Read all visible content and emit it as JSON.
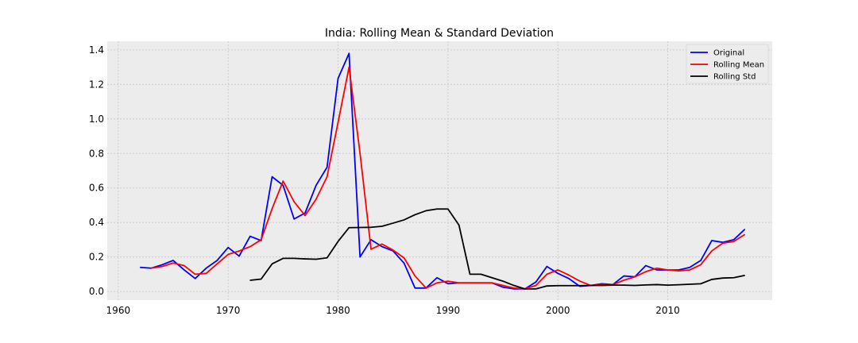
{
  "chart_data": {
    "type": "line",
    "title": "India: Rolling Mean & Standard Deviation",
    "xlabel": "",
    "ylabel": "",
    "xlim": [
      1959,
      2019.5
    ],
    "ylim": [
      -0.05,
      1.45
    ],
    "x_ticks": [
      1960,
      1970,
      1980,
      1990,
      2000,
      2010
    ],
    "y_ticks": [
      0.0,
      0.2,
      0.4,
      0.6,
      0.8,
      1.0,
      1.2,
      1.4
    ],
    "grid": true,
    "legend_position": "top-right",
    "series": [
      {
        "name": "Original",
        "color": "#0000ff",
        "x": [
          1962,
          1963,
          1964,
          1965,
          1966,
          1967,
          1968,
          1969,
          1970,
          1971,
          1972,
          1973,
          1974,
          1975,
          1976,
          1977,
          1978,
          1979,
          1980,
          1981,
          1982,
          1983,
          1984,
          1985,
          1986,
          1987,
          1988,
          1989,
          1990,
          1991,
          1992,
          1993,
          1994,
          1995,
          1996,
          1997,
          1998,
          1999,
          2000,
          2001,
          2002,
          2003,
          2004,
          2005,
          2006,
          2007,
          2008,
          2009,
          2010,
          2011,
          2012,
          2013,
          2014,
          2015,
          2016,
          2017
        ],
        "values": [
          0.14,
          0.135,
          0.155,
          0.18,
          0.125,
          0.075,
          0.135,
          0.18,
          0.255,
          0.205,
          0.32,
          0.295,
          0.665,
          0.615,
          0.42,
          0.455,
          0.615,
          0.72,
          1.235,
          1.38,
          0.2,
          0.3,
          0.26,
          0.235,
          0.165,
          0.02,
          0.02,
          0.08,
          0.045,
          0.05,
          0.05,
          0.05,
          0.05,
          0.025,
          0.015,
          0.015,
          0.055,
          0.145,
          0.105,
          0.075,
          0.03,
          0.035,
          0.045,
          0.04,
          0.09,
          0.085,
          0.15,
          0.125,
          0.125,
          0.125,
          0.14,
          0.18,
          0.295,
          0.285,
          0.3,
          0.36
        ]
      },
      {
        "name": "Rolling Mean",
        "color": "#ff0000",
        "x": [
          1963,
          1964,
          1965,
          1966,
          1967,
          1968,
          1969,
          1970,
          1971,
          1972,
          1973,
          1974,
          1975,
          1976,
          1977,
          1978,
          1979,
          1980,
          1981,
          1982,
          1983,
          1984,
          1985,
          1986,
          1987,
          1988,
          1989,
          1990,
          1991,
          1992,
          1993,
          1994,
          1995,
          1996,
          1997,
          1998,
          1999,
          2000,
          2001,
          2002,
          2003,
          2004,
          2005,
          2006,
          2007,
          2008,
          2009,
          2010,
          2011,
          2012,
          2013,
          2014,
          2015,
          2016,
          2017
        ],
        "values": [
          0.135,
          0.145,
          0.165,
          0.15,
          0.1,
          0.105,
          0.16,
          0.215,
          0.235,
          0.26,
          0.3,
          0.48,
          0.64,
          0.52,
          0.44,
          0.535,
          0.665,
          0.98,
          1.3,
          0.8,
          0.245,
          0.275,
          0.24,
          0.195,
          0.09,
          0.02,
          0.05,
          0.06,
          0.05,
          0.05,
          0.05,
          0.05,
          0.035,
          0.02,
          0.015,
          0.035,
          0.1,
          0.125,
          0.095,
          0.06,
          0.035,
          0.04,
          0.04,
          0.065,
          0.085,
          0.115,
          0.135,
          0.125,
          0.12,
          0.125,
          0.155,
          0.235,
          0.28,
          0.29,
          0.33
        ]
      },
      {
        "name": "Rolling Std",
        "color": "#000000",
        "x": [
          1972,
          1973,
          1974,
          1975,
          1976,
          1977,
          1978,
          1979,
          1980,
          1981,
          1982,
          1983,
          1984,
          1985,
          1986,
          1987,
          1988,
          1989,
          1990,
          1991,
          1992,
          1993,
          1994,
          1995,
          1996,
          1997,
          1998,
          1999,
          2000,
          2001,
          2002,
          2003,
          2004,
          2005,
          2006,
          2007,
          2008,
          2009,
          2010,
          2011,
          2012,
          2013,
          2014,
          2015,
          2016,
          2017
        ],
        "values": [
          0.065,
          0.072,
          0.16,
          0.192,
          0.192,
          0.189,
          0.187,
          0.195,
          0.29,
          0.37,
          0.371,
          0.372,
          0.378,
          0.396,
          0.415,
          0.445,
          0.468,
          0.478,
          0.478,
          0.385,
          0.1,
          0.1,
          0.08,
          0.06,
          0.035,
          0.015,
          0.015,
          0.032,
          0.034,
          0.034,
          0.034,
          0.035,
          0.035,
          0.037,
          0.037,
          0.035,
          0.038,
          0.04,
          0.037,
          0.039,
          0.042,
          0.045,
          0.07,
          0.078,
          0.08,
          0.093
        ]
      }
    ]
  }
}
